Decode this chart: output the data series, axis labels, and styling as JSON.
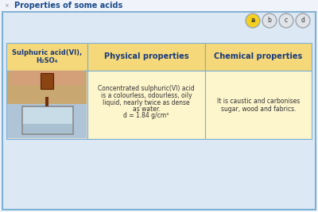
{
  "title": "Properties of some acids",
  "title_color": "#1a4a8a",
  "title_bg": "#f0f4fa",
  "bg_main": "#dce9f5",
  "bg_content": "#cfe0f0",
  "border_outer": "#7bafd4",
  "header_bg": "#f5d87a",
  "header_text_color": "#1a3a7a",
  "cell_bg": "#fdf5cc",
  "cell_border": "#7bafd4",
  "col1_header_line1": "Sulphuric acid(VI),",
  "col1_header_line2": "H₂SO₄",
  "col2_header": "Physical properties",
  "col3_header": "Chemical properties",
  "col2_body_line1": "Concentrated sulphuric(VI) acid",
  "col2_body_line2": "is a colourless, odourless, oily",
  "col2_body_line3": "liquid, nearly twice as dense",
  "col2_body_line4": "as water.",
  "col2_body_line5": "d = 1.84 g/cm³",
  "col3_body_line1": "It is caustic and carbonises",
  "col3_body_line2": "sugar, wood and fabrics.",
  "nav_labels": [
    "a",
    "b",
    "c",
    "d"
  ],
  "nav_active_fill": "#f5d020",
  "nav_inactive_fill": "#e0e4e8",
  "nav_border": "#a0a8b0",
  "img_bg_top": "#c8a870",
  "img_bg_bottom": "#b8c8d8",
  "img_beaker_fill": "#c0d4e8",
  "img_liquid_fill": "#a06030"
}
